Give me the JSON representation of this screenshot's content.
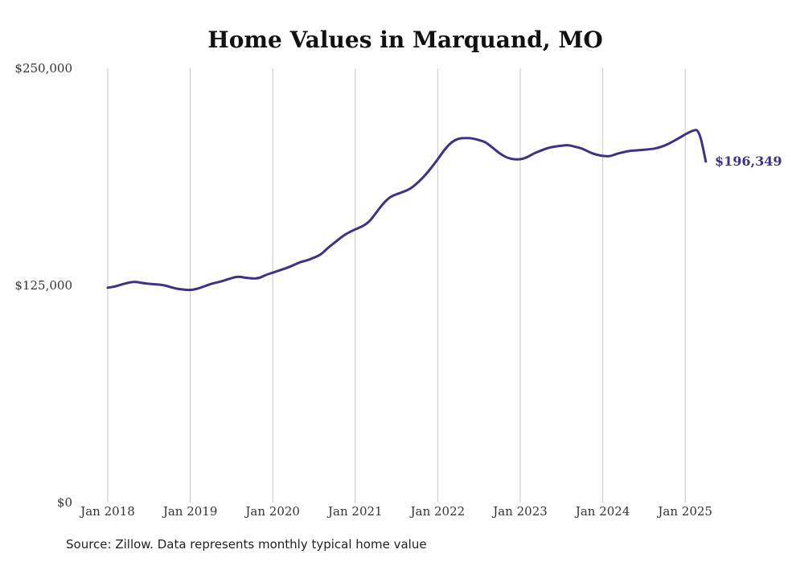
{
  "chart_data": {
    "type": "line",
    "title": "Home Values in Marquand, MO",
    "x_tick_labels": [
      "Jan 2018",
      "Jan 2019",
      "Jan 2020",
      "Jan 2021",
      "Jan 2022",
      "Jan 2023",
      "Jan 2024",
      "Jan 2025"
    ],
    "y_tick_labels": [
      "$250,000",
      "$125,000",
      "$0"
    ],
    "y_ticks": [
      250000,
      125000,
      0
    ],
    "ylim": [
      0,
      250000
    ],
    "xlim": [
      "2018-01",
      "2025-04"
    ],
    "grid": "vertical gridlines at each January",
    "line_color": "#3b3385",
    "end_label": "$196,349",
    "series": [
      {
        "x": [
          "2018-01",
          "2018-02",
          "2018-03",
          "2018-04",
          "2018-05",
          "2018-06",
          "2018-07",
          "2018-08",
          "2018-09",
          "2018-10",
          "2018-11",
          "2018-12",
          "2019-01",
          "2019-02",
          "2019-03",
          "2019-04",
          "2019-05",
          "2019-06",
          "2019-07",
          "2019-08",
          "2019-09",
          "2019-10",
          "2019-11",
          "2019-12",
          "2020-01",
          "2020-02",
          "2020-03",
          "2020-04",
          "2020-05",
          "2020-06",
          "2020-07",
          "2020-08",
          "2020-09",
          "2020-10",
          "2020-11",
          "2020-12",
          "2021-01",
          "2021-02",
          "2021-03",
          "2021-04",
          "2021-05",
          "2021-06",
          "2021-07",
          "2021-08",
          "2021-09",
          "2021-10",
          "2021-11",
          "2021-12",
          "2022-01",
          "2022-02",
          "2022-03",
          "2022-04",
          "2022-05",
          "2022-06",
          "2022-07",
          "2022-08",
          "2022-09",
          "2022-10",
          "2022-11",
          "2022-12",
          "2023-01",
          "2023-02",
          "2023-03",
          "2023-04",
          "2023-05",
          "2023-06",
          "2023-07",
          "2023-08",
          "2023-09",
          "2023-10",
          "2023-11",
          "2023-12",
          "2024-01",
          "2024-02",
          "2024-03",
          "2024-04",
          "2024-05",
          "2024-06",
          "2024-07",
          "2024-08",
          "2024-09",
          "2024-10",
          "2024-11",
          "2024-12",
          "2025-01",
          "2025-02",
          "2025-03",
          "2025-04"
        ],
        "values": [
          123700,
          124300,
          125500,
          126600,
          127200,
          126400,
          125900,
          125600,
          125300,
          124200,
          123100,
          122600,
          122300,
          123000,
          124400,
          125900,
          126800,
          127900,
          129200,
          130200,
          129400,
          129000,
          129100,
          131100,
          132300,
          133700,
          135000,
          136600,
          138500,
          139400,
          141000,
          142700,
          146600,
          149600,
          152900,
          155400,
          157300,
          158900,
          161500,
          166600,
          171900,
          175800,
          177500,
          178900,
          180600,
          183800,
          187700,
          192400,
          197600,
          203300,
          207500,
          209600,
          209900,
          209700,
          208700,
          207400,
          204300,
          201000,
          198600,
          197600,
          197500,
          198700,
          201100,
          202600,
          204200,
          205000,
          205500,
          205900,
          204800,
          203900,
          201800,
          200300,
          199600,
          199200,
          200800,
          201700,
          202600,
          202800,
          203100,
          203500,
          204100,
          205500,
          207400,
          209600,
          212000,
          214100,
          214900,
          196349
        ],
        "values_note_removed": true
      }
    ]
  },
  "footer": {
    "source": "Source: Zillow. Data represents monthly typical home value"
  }
}
